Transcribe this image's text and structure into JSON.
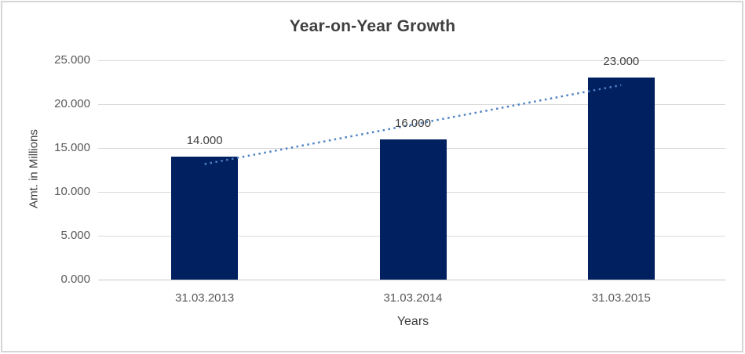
{
  "chart_data": {
    "type": "bar",
    "title": "Year-on-Year Growth",
    "xlabel": "Years",
    "ylabel": "Amt. in Millions",
    "categories": [
      "31.03.2013",
      "31.03.2014",
      "31.03.2015"
    ],
    "values": [
      14,
      16,
      23
    ],
    "data_labels": [
      "14.000",
      "16.000",
      "23.000"
    ],
    "ylim": [
      0,
      25
    ],
    "ytick_step": 5,
    "ytick_labels": [
      "0.000",
      "5.000",
      "10.000",
      "15.000",
      "20.000",
      "25.000"
    ],
    "grid": true,
    "legend": "none",
    "trendline": {
      "type": "linear",
      "style": "dotted",
      "start_value": 13.17,
      "end_value": 22.17,
      "color": "#4E82C4"
    },
    "colors": {
      "bar": "#002060",
      "gridline": "#D9D9D9",
      "axis_line": "#C9C9C9",
      "title_text": "#404040",
      "tick_text": "#595959",
      "data_label_text": "#404040",
      "frame_border": "#D6D6D6",
      "background": "#FFFFFF"
    }
  }
}
